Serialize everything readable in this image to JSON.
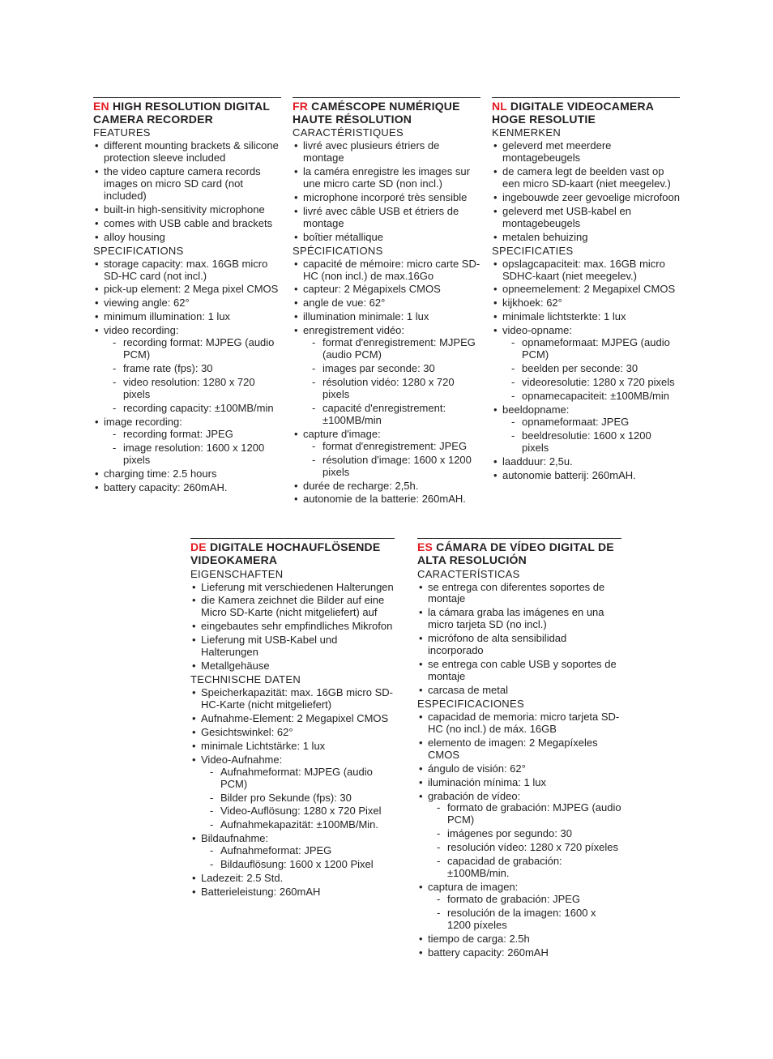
{
  "langs": {
    "en": {
      "code": "EN",
      "title": "HIGH RESOLUTION DIGITAL CAMERA RECORDER",
      "s1": "FEATURES",
      "f": [
        "different mounting brackets & silicone protection sleeve included",
        "the video capture camera records images on micro SD card (not included)",
        "built-in high-sensitivity microphone",
        "comes with USB cable and brackets",
        "alloy housing"
      ],
      "s2": "SPECIFICATIONS",
      "p": [
        "storage capacity: max. 16GB micro SD-HC card (not incl.)",
        "pick-up element: 2 Mega pixel CMOS",
        "viewing angle: 62°",
        "minimum illumination: 1 lux"
      ],
      "vr_label": "video recording:",
      "vr": [
        "recording format: MJPEG (audio PCM)",
        "frame rate (fps): 30",
        "video resolution: 1280 x 720 pixels",
        "recording capacity: ±100MB/min"
      ],
      "ir_label": "image recording:",
      "ir": [
        "recording format: JPEG",
        "image resolution: 1600 x 1200 pixels"
      ],
      "tail": [
        "charging time: 2.5 hours",
        "battery capacity: 260mAH."
      ]
    },
    "fr": {
      "code": "FR",
      "title": "CAMÉSCOPE NUMÉRIQUE HAUTE RÉSOLUTION",
      "s1": "CARACTÉRISTIQUES",
      "f": [
        "livré avec plusieurs étriers de montage",
        "la caméra enregistre les images sur une micro carte SD (non incl.)",
        "microphone incorporé très sensible",
        "livré avec câble USB et étriers de montage",
        "boîtier métallique"
      ],
      "s2": "SPÉCIFICATIONS",
      "p": [
        "capacité de mémoire: micro carte SD-HC (non incl.) de max.16Go",
        "capteur: 2 Mégapixels CMOS",
        "angle de vue: 62°",
        "illumination minimale: 1 lux"
      ],
      "vr_label": "enregistrement vidéo:",
      "vr": [
        "format d'enregistrement: MJPEG (audio PCM)",
        "images par seconde: 30",
        "résolution vidéo: 1280 x 720 pixels",
        "capacité d'enregistrement: ±100MB/min"
      ],
      "ir_label": "capture d'image:",
      "ir": [
        "format d'enregistrement: JPEG",
        "résolution d'image: 1600 x 1200 pixels"
      ],
      "tail": [
        "durée de recharge: 2,5h.",
        "autonomie de la batterie: 260mAH."
      ]
    },
    "nl": {
      "code": "NL",
      "title": "DIGITALE VIDEOCAMERA HOGE RESOLUTIE",
      "s1": "KENMERKEN",
      "f": [
        "geleverd met meerdere montagebeugels",
        "de camera legt de beelden vast op een micro SD-kaart (niet meegelev.)",
        "ingebouwde zeer gevoelige microfoon",
        "geleverd met USB-kabel en montagebeugels",
        "metalen behuizing"
      ],
      "s2": "SPECIFICATIES",
      "p": [
        "opslagcapaciteit: max. 16GB micro SDHC-kaart (niet meegelev.)",
        "opneemelement: 2 Megapixel CMOS",
        "kijkhoek: 62°",
        "minimale lichtsterkte: 1 lux"
      ],
      "vr_label": "video-opname:",
      "vr": [
        "opnameformaat: MJPEG (audio PCM)",
        "beelden per seconde: 30",
        "videoresolutie: 1280 x 720 pixels",
        "opnamecapaciteit: ±100MB/min"
      ],
      "ir_label": "beeldopname:",
      "ir": [
        "opnameformaat: JPEG",
        "beeldresolutie: 1600 x 1200 pixels"
      ],
      "tail": [
        "laadduur: 2,5u.",
        "autonomie batterij: 260mAH."
      ]
    },
    "de": {
      "code": "DE",
      "title": "DIGITALE HOCHAUFLÖSENDE VIDEOKAMERA",
      "s1": "EIGENSCHAFTEN",
      "f": [
        "Lieferung mit verschiedenen Halterungen",
        "die Kamera zeichnet die Bilder auf eine Micro SD-Karte (nicht mitgeliefert) auf",
        "eingebautes sehr empfindliches Mikrofon",
        "Lieferung mit USB-Kabel und Halterungen",
        "Metallgehäuse"
      ],
      "s2": "TECHNISCHE DATEN",
      "p": [
        "Speicherkapazität: max. 16GB micro SD-HC-Karte (nicht mitgeliefert)",
        "Aufnahme-Element: 2 Megapixel CMOS",
        "Gesichtswinkel: 62°",
        "minimale Lichtstärke: 1 lux"
      ],
      "vr_label": "Video-Aufnahme:",
      "vr": [
        "Aufnahmeformat: MJPEG (audio PCM)",
        "Bilder pro Sekunde (fps): 30",
        "Video-Auflösung: 1280 x 720 Pixel",
        "Aufnahmekapazität: ±100MB/Min."
      ],
      "ir_label": "Bildaufnahme:",
      "ir": [
        "Aufnahmeformat: JPEG",
        "Bildauflösung: 1600 x 1200 Pixel"
      ],
      "tail": [
        "Ladezeit: 2.5 Std.",
        "Batterieleistung: 260mAH"
      ]
    },
    "es": {
      "code": "ES",
      "title": "CÁMARA DE VÍDEO DIGITAL DE ALTA RESOLUCIÓN",
      "s1": "CARACTERÍSTICAS",
      "f": [
        "se entrega con diferentes soportes de montaje",
        "la cámara graba las imágenes en una micro tarjeta SD (no incl.)",
        "micrófono de alta sensibilidad incorporado",
        "se entrega con cable USB y soportes de montaje",
        "carcasa de metal"
      ],
      "s2": "ESPECIFICACIONES",
      "p": [
        "capacidad de memoria: micro tarjeta SD-HC (no incl.) de máx. 16GB",
        "elemento de imagen: 2 Megapíxeles CMOS",
        "ángulo de visión: 62°",
        "iluminación mínima: 1 lux"
      ],
      "vr_label": "grabación de vídeo:",
      "vr": [
        "formato de grabación: MJPEG (audio PCM)",
        "imágenes por segundo: 30",
        "resolución vídeo: 1280 x 720 píxeles",
        "capacidad de grabación: ±100MB/min."
      ],
      "ir_label": "captura de imagen:",
      "ir": [
        "formato de grabación: JPEG",
        "resolución de la imagen: 1600 x 1200 píxeles"
      ],
      "tail": [
        "tiempo de carga: 2.5h",
        "battery capacity: 260mAH"
      ]
    }
  },
  "colors": {
    "accent": "#e41b23",
    "text": "#231f20"
  }
}
